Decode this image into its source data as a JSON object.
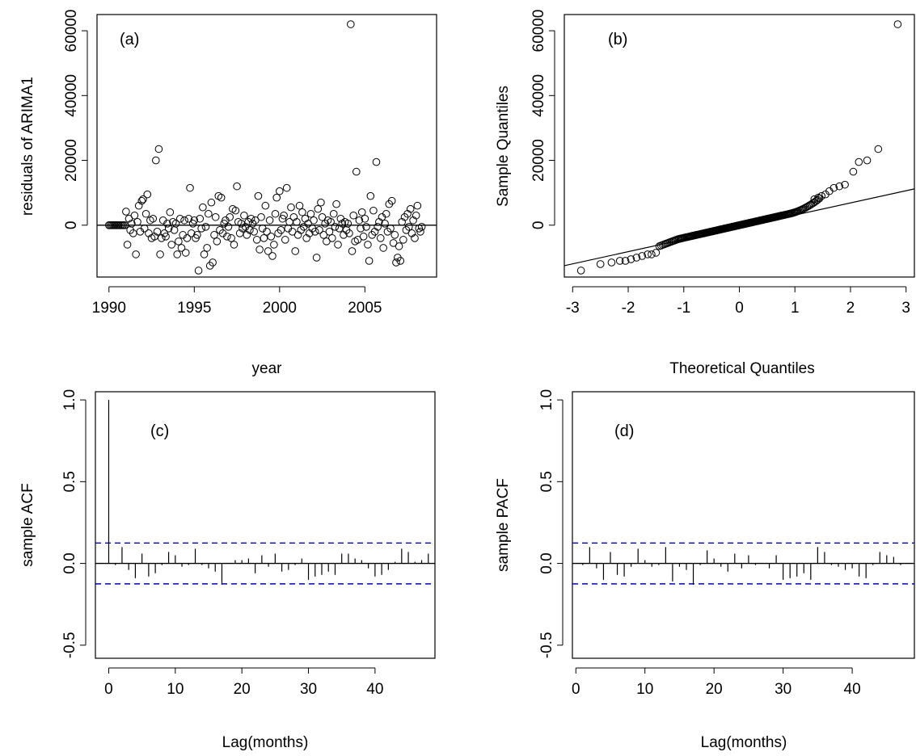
{
  "chart_data": [
    {
      "panel": "(a)",
      "type": "scatter",
      "xlabel": "year",
      "ylabel": "residuals of ARIMA1",
      "xlim": [
        1989.3,
        2009.2
      ],
      "ylim": [
        -16000,
        65000
      ],
      "xticks": [
        1990,
        1995,
        2000,
        2005
      ],
      "yticks": [
        0,
        20000,
        40000,
        60000
      ],
      "hline": 0,
      "marker": "open-circle",
      "points": [
        [
          1990.0,
          0
        ],
        [
          1990.08,
          0
        ],
        [
          1990.17,
          0
        ],
        [
          1990.25,
          0
        ],
        [
          1990.33,
          0
        ],
        [
          1990.42,
          0
        ],
        [
          1990.5,
          0
        ],
        [
          1990.58,
          0
        ],
        [
          1990.67,
          0
        ],
        [
          1990.75,
          0
        ],
        [
          1990.83,
          0
        ],
        [
          1990.92,
          0
        ],
        [
          1991.0,
          4200
        ],
        [
          1991.08,
          -6000
        ],
        [
          1991.17,
          2000
        ],
        [
          1991.25,
          -1500
        ],
        [
          1991.33,
          500
        ],
        [
          1991.42,
          -2500
        ],
        [
          1991.5,
          3000
        ],
        [
          1991.58,
          -9000
        ],
        [
          1991.67,
          1000
        ],
        [
          1991.75,
          6000
        ],
        [
          1991.83,
          -2000
        ],
        [
          1991.92,
          7500
        ],
        [
          1992.0,
          8000
        ],
        [
          1992.08,
          -1000
        ],
        [
          1992.17,
          3500
        ],
        [
          1992.25,
          9500
        ],
        [
          1992.33,
          -2500
        ],
        [
          1992.42,
          1500
        ],
        [
          1992.5,
          -4000
        ],
        [
          1992.58,
          2000
        ],
        [
          1992.67,
          -3500
        ],
        [
          1992.75,
          20000
        ],
        [
          1992.83,
          -2000
        ],
        [
          1992.92,
          23500
        ],
        [
          1993.0,
          -9000
        ],
        [
          1993.08,
          -4000
        ],
        [
          1993.17,
          1500
        ],
        [
          1993.25,
          -2500
        ],
        [
          1993.33,
          -3500
        ],
        [
          1993.42,
          500
        ],
        [
          1993.5,
          -1000
        ],
        [
          1993.58,
          4000
        ],
        [
          1993.67,
          -6000
        ],
        [
          1993.75,
          1000
        ],
        [
          1993.83,
          -1500
        ],
        [
          1993.92,
          500
        ],
        [
          1994.0,
          -9000
        ],
        [
          1994.08,
          -5000
        ],
        [
          1994.17,
          2000
        ],
        [
          1994.25,
          -7000
        ],
        [
          1994.33,
          -3000
        ],
        [
          1994.42,
          1500
        ],
        [
          1994.5,
          -8500
        ],
        [
          1994.58,
          -4000
        ],
        [
          1994.67,
          2000
        ],
        [
          1994.75,
          11500
        ],
        [
          1994.83,
          -2500
        ],
        [
          1994.92,
          500
        ],
        [
          1995.0,
          1500
        ],
        [
          1995.08,
          -4000
        ],
        [
          1995.17,
          -3000
        ],
        [
          1995.25,
          -14000
        ],
        [
          1995.33,
          2000
        ],
        [
          1995.42,
          -1000
        ],
        [
          1995.5,
          5500
        ],
        [
          1995.58,
          -9000
        ],
        [
          1995.67,
          -500
        ],
        [
          1995.75,
          -7000
        ],
        [
          1995.83,
          3500
        ],
        [
          1995.92,
          -12500
        ],
        [
          1996.0,
          7000
        ],
        [
          1996.08,
          -11500
        ],
        [
          1996.17,
          -3000
        ],
        [
          1996.25,
          2500
        ],
        [
          1996.33,
          -5000
        ],
        [
          1996.42,
          9000
        ],
        [
          1996.5,
          -1500
        ],
        [
          1996.58,
          8500
        ],
        [
          1996.67,
          -2500
        ],
        [
          1996.75,
          500
        ],
        [
          1996.83,
          1500
        ],
        [
          1996.92,
          -3500
        ],
        [
          1997.0,
          -500
        ],
        [
          1997.08,
          2500
        ],
        [
          1997.17,
          -4000
        ],
        [
          1997.25,
          5000
        ],
        [
          1997.33,
          -6000
        ],
        [
          1997.42,
          4500
        ],
        [
          1997.5,
          12000
        ],
        [
          1997.58,
          1000
        ],
        [
          1997.67,
          -2500
        ],
        [
          1997.75,
          500
        ],
        [
          1997.83,
          -1000
        ],
        [
          1997.92,
          3000
        ],
        [
          1998.0,
          -500
        ],
        [
          1998.08,
          -3000
        ],
        [
          1998.17,
          1000
        ],
        [
          1998.25,
          -1500
        ],
        [
          1998.33,
          2000
        ],
        [
          1998.42,
          500
        ],
        [
          1998.5,
          -2000
        ],
        [
          1998.58,
          1500
        ],
        [
          1998.67,
          -4500
        ],
        [
          1998.75,
          9000
        ],
        [
          1998.83,
          -7500
        ],
        [
          1998.92,
          2500
        ],
        [
          1999.0,
          -1000
        ],
        [
          1999.08,
          -4000
        ],
        [
          1999.17,
          6000
        ],
        [
          1999.25,
          -2000
        ],
        [
          1999.33,
          -8000
        ],
        [
          1999.42,
          1500
        ],
        [
          1999.5,
          -3500
        ],
        [
          1999.58,
          -9500
        ],
        [
          1999.67,
          -6000
        ],
        [
          1999.75,
          3500
        ],
        [
          1999.83,
          8500
        ],
        [
          1999.92,
          -2500
        ],
        [
          2000.0,
          10500
        ],
        [
          2000.08,
          -1500
        ],
        [
          2000.17,
          2000
        ],
        [
          2000.25,
          3000
        ],
        [
          2000.33,
          -4500
        ],
        [
          2000.42,
          11500
        ],
        [
          2000.5,
          -1000
        ],
        [
          2000.58,
          1000
        ],
        [
          2000.67,
          5500
        ],
        [
          2000.75,
          -2000
        ],
        [
          2000.83,
          2500
        ],
        [
          2000.92,
          -8000
        ],
        [
          2001.0,
          1000
        ],
        [
          2001.08,
          -3000
        ],
        [
          2001.17,
          6000
        ],
        [
          2001.25,
          -1500
        ],
        [
          2001.33,
          4000
        ],
        [
          2001.42,
          -500
        ],
        [
          2001.5,
          2000
        ],
        [
          2001.58,
          -4000
        ],
        [
          2001.67,
          500
        ],
        [
          2001.75,
          -2500
        ],
        [
          2001.83,
          3500
        ],
        [
          2001.92,
          -1000
        ],
        [
          2002.0,
          1500
        ],
        [
          2002.08,
          -2000
        ],
        [
          2002.17,
          -10000
        ],
        [
          2002.25,
          5000
        ],
        [
          2002.33,
          -1500
        ],
        [
          2002.42,
          7000
        ],
        [
          2002.5,
          2500
        ],
        [
          2002.58,
          -3000
        ],
        [
          2002.67,
          500
        ],
        [
          2002.75,
          -5000
        ],
        [
          2002.83,
          1500
        ],
        [
          2002.92,
          -2000
        ],
        [
          2003.0,
          1000
        ],
        [
          2003.08,
          -4000
        ],
        [
          2003.17,
          3500
        ],
        [
          2003.25,
          -500
        ],
        [
          2003.33,
          6500
        ],
        [
          2003.42,
          -6000
        ],
        [
          2003.5,
          -1000
        ],
        [
          2003.58,
          2000
        ],
        [
          2003.67,
          500
        ],
        [
          2003.75,
          -3000
        ],
        [
          2003.83,
          1000
        ],
        [
          2003.92,
          -1500
        ],
        [
          2004.0,
          500
        ],
        [
          2004.08,
          -2500
        ],
        [
          2004.17,
          62000
        ],
        [
          2004.25,
          -8000
        ],
        [
          2004.33,
          3000
        ],
        [
          2004.42,
          -5000
        ],
        [
          2004.5,
          16500
        ],
        [
          2004.58,
          -4500
        ],
        [
          2004.67,
          1500
        ],
        [
          2004.75,
          -1000
        ],
        [
          2004.83,
          4000
        ],
        [
          2004.92,
          -3500
        ],
        [
          2005.0,
          2000
        ],
        [
          2005.08,
          -500
        ],
        [
          2005.17,
          -6000
        ],
        [
          2005.25,
          -11000
        ],
        [
          2005.33,
          9000
        ],
        [
          2005.42,
          -3000
        ],
        [
          2005.5,
          4500
        ],
        [
          2005.58,
          -2000
        ],
        [
          2005.67,
          19500
        ],
        [
          2005.75,
          -500
        ],
        [
          2005.83,
          1000
        ],
        [
          2005.92,
          -4000
        ],
        [
          2006.0,
          2500
        ],
        [
          2006.08,
          -7000
        ],
        [
          2006.17,
          500
        ],
        [
          2006.25,
          3500
        ],
        [
          2006.33,
          -2000
        ],
        [
          2006.42,
          6500
        ],
        [
          2006.5,
          -1000
        ],
        [
          2006.58,
          7500
        ],
        [
          2006.67,
          -5500
        ],
        [
          2006.75,
          -3000
        ],
        [
          2006.83,
          -11500
        ],
        [
          2006.92,
          -10000
        ],
        [
          2007.0,
          -6500
        ],
        [
          2007.08,
          -11000
        ],
        [
          2007.17,
          1000
        ],
        [
          2007.25,
          -4500
        ],
        [
          2007.33,
          2500
        ],
        [
          2007.42,
          -1500
        ],
        [
          2007.5,
          3500
        ],
        [
          2007.58,
          -500
        ],
        [
          2007.67,
          5000
        ],
        [
          2007.75,
          -2500
        ],
        [
          2007.83,
          1500
        ],
        [
          2007.92,
          -4000
        ],
        [
          2008.0,
          3000
        ],
        [
          2008.08,
          6000
        ],
        [
          2008.17,
          -1000
        ],
        [
          2008.25,
          -2000
        ],
        [
          2008.33,
          -500
        ]
      ]
    },
    {
      "panel": "(b)",
      "type": "scatter",
      "xlabel": "Theoretical Quantiles",
      "ylabel": "Sample Quantiles",
      "xlim": [
        -3.15,
        3.15
      ],
      "ylim": [
        -16000,
        65000
      ],
      "xticks": [
        -3,
        -2,
        -1,
        0,
        1,
        2,
        3
      ],
      "yticks": [
        0,
        20000,
        40000,
        60000
      ],
      "marker": "open-circle",
      "qqline": {
        "x": [
          -3.15,
          3.15
        ],
        "y": [
          -12500,
          11200
        ]
      },
      "n_points": 220,
      "points": [
        [
          -2.85,
          -14000
        ],
        [
          2.85,
          62000
        ],
        [
          2.5,
          23500
        ],
        [
          2.3,
          20000
        ],
        [
          2.15,
          19500
        ],
        [
          2.05,
          16500
        ],
        [
          1.9,
          12500
        ],
        [
          1.8,
          12000
        ],
        [
          1.7,
          11500
        ],
        [
          1.62,
          10500
        ],
        [
          1.55,
          9500
        ],
        [
          1.48,
          9000
        ],
        [
          1.42,
          8500
        ],
        [
          1.35,
          8000
        ],
        [
          -2.5,
          -12000
        ],
        [
          -2.3,
          -11500
        ],
        [
          -2.15,
          -11000
        ],
        [
          -2.05,
          -11000
        ],
        [
          -1.95,
          -10500
        ],
        [
          -1.85,
          -10000
        ],
        [
          -1.75,
          -9500
        ],
        [
          -1.65,
          -9000
        ],
        [
          -1.58,
          -9000
        ],
        [
          -1.5,
          -8500
        ]
      ]
    },
    {
      "panel": "(c)",
      "type": "bar",
      "xlabel": "Lag(months)",
      "ylabel": "sample ACF",
      "xlim": [
        -2,
        49
      ],
      "ylim": [
        -0.58,
        1.05
      ],
      "xticks": [
        0,
        10,
        20,
        30,
        40
      ],
      "yticks": [
        -0.5,
        0.0,
        0.5,
        1.0
      ],
      "conf_bounds": [
        0.125,
        -0.125
      ],
      "lags": [
        0,
        1,
        2,
        3,
        4,
        5,
        6,
        7,
        8,
        9,
        10,
        11,
        12,
        13,
        14,
        15,
        16,
        17,
        18,
        19,
        20,
        21,
        22,
        23,
        24,
        25,
        26,
        27,
        28,
        29,
        30,
        31,
        32,
        33,
        34,
        35,
        36,
        37,
        38,
        39,
        40,
        41,
        42,
        43,
        44,
        45,
        46,
        47,
        48
      ],
      "values": [
        1.0,
        -0.01,
        0.1,
        -0.04,
        -0.09,
        0.06,
        -0.08,
        -0.06,
        -0.01,
        0.07,
        0.05,
        -0.02,
        -0.01,
        0.09,
        -0.01,
        -0.03,
        -0.05,
        -0.13,
        0.0,
        0.02,
        0.02,
        0.03,
        -0.06,
        0.05,
        -0.02,
        0.06,
        -0.05,
        -0.04,
        -0.01,
        0.03,
        -0.1,
        -0.08,
        -0.07,
        -0.05,
        -0.07,
        0.06,
        0.06,
        0.03,
        0.02,
        -0.03,
        -0.08,
        -0.07,
        -0.04,
        0.01,
        0.09,
        0.07,
        0.01,
        0.02,
        0.06
      ]
    },
    {
      "panel": "(d)",
      "type": "bar",
      "xlabel": "Lag(months)",
      "ylabel": "sample PACF",
      "xlim": [
        -0.5,
        49
      ],
      "ylim": [
        -0.58,
        1.05
      ],
      "xticks": [
        0,
        10,
        20,
        30,
        40
      ],
      "yticks": [
        -0.5,
        0.0,
        0.5,
        1.0
      ],
      "conf_bounds": [
        0.125,
        -0.125
      ],
      "lags": [
        1,
        2,
        3,
        4,
        5,
        6,
        7,
        8,
        9,
        10,
        11,
        12,
        13,
        14,
        15,
        16,
        17,
        18,
        19,
        20,
        21,
        22,
        23,
        24,
        25,
        26,
        27,
        28,
        29,
        30,
        31,
        32,
        33,
        34,
        35,
        36,
        37,
        38,
        39,
        40,
        41,
        42,
        43,
        44,
        45,
        46,
        47
      ],
      "values": [
        -0.01,
        0.1,
        -0.03,
        -0.1,
        0.07,
        -0.07,
        -0.08,
        -0.02,
        0.09,
        0.02,
        -0.02,
        -0.01,
        0.1,
        -0.11,
        -0.02,
        -0.04,
        -0.13,
        -0.01,
        0.08,
        0.03,
        -0.02,
        -0.05,
        0.06,
        -0.03,
        0.05,
        -0.01,
        0.0,
        -0.03,
        0.05,
        -0.1,
        -0.09,
        -0.08,
        -0.06,
        -0.1,
        0.1,
        0.07,
        -0.01,
        -0.02,
        -0.04,
        -0.03,
        -0.08,
        -0.09,
        -0.01,
        0.07,
        0.05,
        0.04,
        -0.01
      ]
    }
  ],
  "style": {
    "conf_color": "#0000cc",
    "ink": "#000000"
  }
}
